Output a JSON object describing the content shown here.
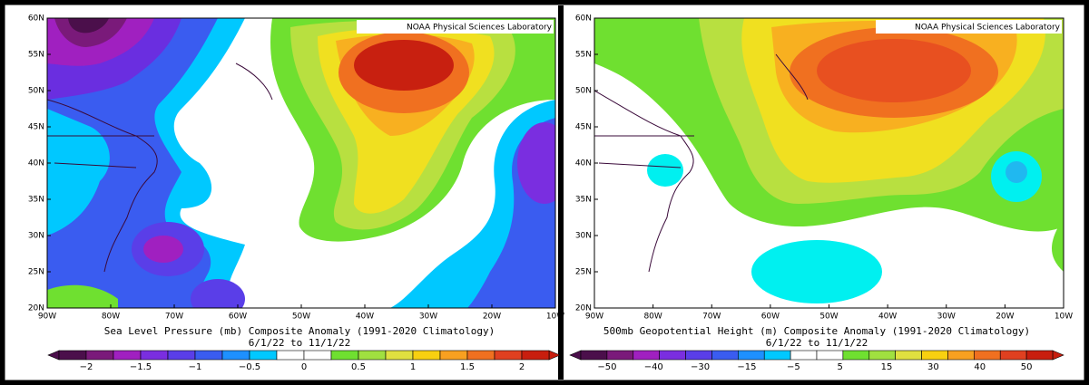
{
  "panels": [
    {
      "credit": "NOAA Physical Sciences Laboratory",
      "lat_labels": [
        "60N",
        "55N",
        "50N",
        "45N",
        "40N",
        "35N",
        "30N",
        "25N",
        "20N"
      ],
      "lon_labels": [
        "90W",
        "80W",
        "70W",
        "60W",
        "50W",
        "40W",
        "30W",
        "20W",
        "10W"
      ],
      "title": "Sea Level Pressure (mb) Composite Anomaly (1991-2020 Climatology)",
      "dates": "6/1/22  to 11/1/22",
      "colorbar_labels": [
        "−2",
        "−1.5",
        "−1",
        "−0.5",
        "0",
        "0.5",
        "1",
        "1.5",
        "2"
      ]
    },
    {
      "credit": "NOAA Physical Sciences Laboratory",
      "lat_labels": [
        "60N",
        "55N",
        "50N",
        "45N",
        "40N",
        "35N",
        "30N",
        "25N",
        "20N"
      ],
      "lon_labels": [
        "90W",
        "80W",
        "70W",
        "60W",
        "50W",
        "40W",
        "30W",
        "20W",
        "10W"
      ],
      "title": "500mb Geopotential Height (m) Composite Anomaly (1991-2020 Climatology)",
      "dates": "6/1/22  to 11/1/22",
      "colorbar_labels": [
        "−50",
        "−40",
        "−30",
        "−15",
        "−5",
        "5",
        "15",
        "30",
        "40",
        "50"
      ]
    }
  ]
}
